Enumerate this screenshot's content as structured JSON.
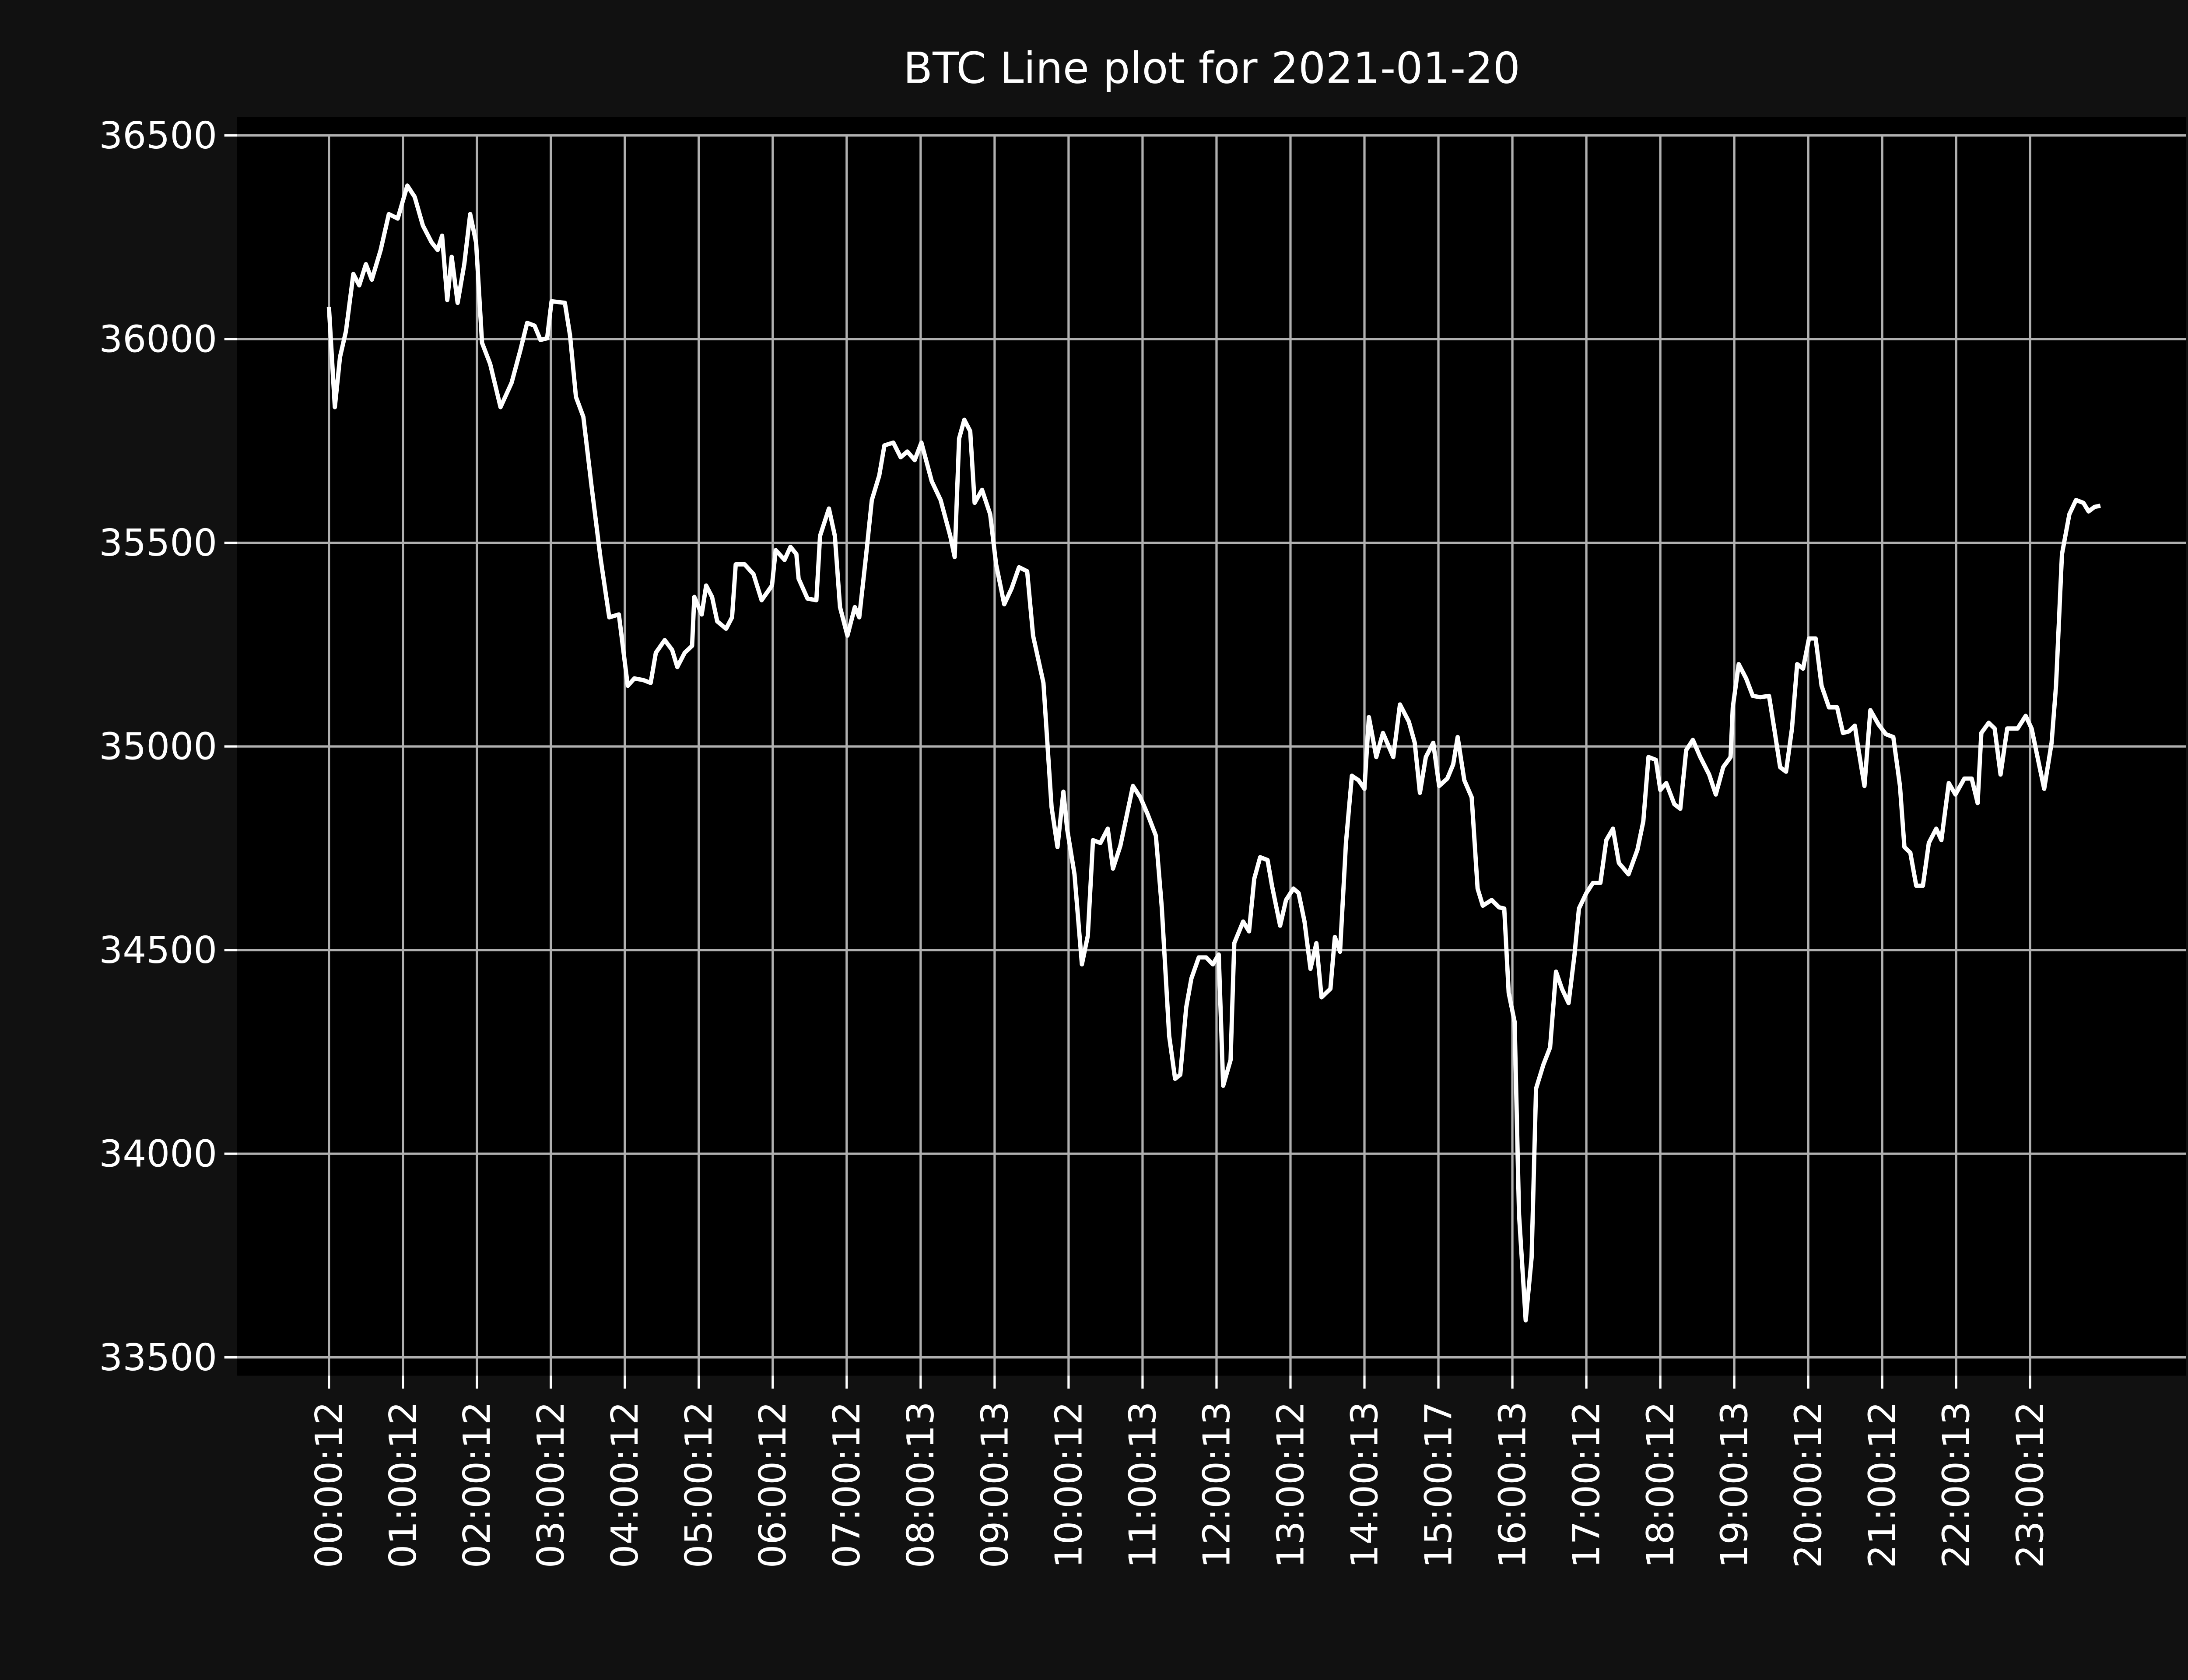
{
  "chart_data": {
    "type": "line",
    "title": "BTC Line plot for 2021-01-20",
    "color": "#ffffff",
    "grid": true,
    "x": [
      0.0,
      0.08,
      0.15,
      0.23,
      0.33,
      0.41,
      0.5,
      0.58,
      0.7,
      0.81,
      0.93,
      1.06,
      1.16,
      1.27,
      1.39,
      1.47,
      1.53,
      1.6,
      1.66,
      1.74,
      1.83,
      1.91,
      1.99,
      2.07,
      2.18,
      2.32,
      2.47,
      2.59,
      2.68,
      2.78,
      2.86,
      2.95,
      3.01,
      3.19,
      3.26,
      3.34,
      3.44,
      3.55,
      3.67,
      3.79,
      3.92,
      4.04,
      4.13,
      4.25,
      4.35,
      4.42,
      4.54,
      4.64,
      4.71,
      4.81,
      4.91,
      4.94,
      5.04,
      5.1,
      5.18,
      5.25,
      5.37,
      5.45,
      5.5,
      5.62,
      5.74,
      5.85,
      5.99,
      6.04,
      6.16,
      6.24,
      6.32,
      6.35,
      6.47,
      6.59,
      6.64,
      6.76,
      6.84,
      6.91,
      7.01,
      7.11,
      7.17,
      7.26,
      7.34,
      7.44,
      7.51,
      7.63,
      7.73,
      7.82,
      7.92,
      8.01,
      8.15,
      8.27,
      8.4,
      8.46,
      8.52,
      8.59,
      8.67,
      8.73,
      8.83,
      8.94,
      9.02,
      9.13,
      9.23,
      9.33,
      9.44,
      9.52,
      9.66,
      9.77,
      9.85,
      9.93,
      9.98,
      10.08,
      10.18,
      10.26,
      10.33,
      10.43,
      10.53,
      10.6,
      10.7,
      10.81,
      10.87,
      10.97,
      11.07,
      11.18,
      11.26,
      11.36,
      11.44,
      11.51,
      11.59,
      11.66,
      11.76,
      11.86,
      11.95,
      12.03,
      12.09,
      12.19,
      12.24,
      12.36,
      12.44,
      12.51,
      12.59,
      12.69,
      12.75,
      12.86,
      12.94,
      13.04,
      13.11,
      13.19,
      13.27,
      13.35,
      13.42,
      13.54,
      13.6,
      13.67,
      13.75,
      13.83,
      13.92,
      14.0,
      14.06,
      14.16,
      14.25,
      14.39,
      14.48,
      14.6,
      14.68,
      14.75,
      14.83,
      14.93,
      15.01,
      15.12,
      15.2,
      15.26,
      15.35,
      15.45,
      15.53,
      15.6,
      15.72,
      15.82,
      15.89,
      15.95,
      16.03,
      16.09,
      16.18,
      16.26,
      16.32,
      16.42,
      16.51,
      16.59,
      16.67,
      16.76,
      16.84,
      16.9,
      17.0,
      17.09,
      17.19,
      17.27,
      17.36,
      17.44,
      17.57,
      17.69,
      17.77,
      17.84,
      17.94,
      18.0,
      18.08,
      18.19,
      18.27,
      18.35,
      18.44,
      18.54,
      18.66,
      18.75,
      18.85,
      18.95,
      18.98,
      19.06,
      19.16,
      19.25,
      19.35,
      19.47,
      19.54,
      19.62,
      19.7,
      19.78,
      19.85,
      19.93,
      20.01,
      20.1,
      20.18,
      20.28,
      20.39,
      20.47,
      20.55,
      20.63,
      20.68,
      20.76,
      20.84,
      20.95,
      21.05,
      21.15,
      21.24,
      21.3,
      21.38,
      21.46,
      21.55,
      21.63,
      21.73,
      21.8,
      21.9,
      21.99,
      22.11,
      22.21,
      22.29,
      22.34,
      22.44,
      22.52,
      22.6,
      22.69,
      22.83,
      22.94,
      23.02,
      23.12,
      23.19,
      23.29,
      23.35,
      23.43,
      23.53,
      23.62,
      23.72,
      23.79,
      23.87,
      23.95
    ],
    "values": [
      36079,
      35833,
      35956,
      36019,
      36160,
      36132,
      36184,
      36146,
      36219,
      36307,
      36296,
      36377,
      36349,
      36279,
      36237,
      36219,
      36254,
      36096,
      36202,
      36089,
      36184,
      36307,
      36237,
      35991,
      35939,
      35833,
      35893,
      35974,
      36040,
      36033,
      35998,
      36002,
      36093,
      36089,
      36009,
      35858,
      35809,
      35640,
      35465,
      35317,
      35324,
      35149,
      35167,
      35163,
      35156,
      35230,
      35261,
      35237,
      35195,
      35230,
      35247,
      35367,
      35324,
      35395,
      35367,
      35307,
      35289,
      35317,
      35447,
      35447,
      35423,
      35359,
      35395,
      35482,
      35458,
      35490,
      35472,
      35412,
      35363,
      35359,
      35517,
      35584,
      35517,
      35342,
      35272,
      35342,
      35317,
      35465,
      35605,
      35665,
      35739,
      35746,
      35710,
      35724,
      35703,
      35746,
      35651,
      35605,
      35517,
      35465,
      35756,
      35802,
      35774,
      35598,
      35630,
      35570,
      35447,
      35349,
      35388,
      35440,
      35430,
      35272,
      35156,
      34851,
      34753,
      34889,
      34798,
      34686,
      34465,
      34535,
      34770,
      34763,
      34798,
      34700,
      34756,
      34851,
      34903,
      34875,
      34833,
      34781,
      34605,
      34289,
      34184,
      34194,
      34359,
      34430,
      34482,
      34482,
      34465,
      34489,
      34167,
      34230,
      34517,
      34570,
      34546,
      34675,
      34728,
      34721,
      34658,
      34560,
      34623,
      34651,
      34640,
      34570,
      34454,
      34517,
      34384,
      34405,
      34532,
      34496,
      34763,
      34928,
      34917,
      34896,
      35072,
      34974,
      35033,
      34974,
      35103,
      35061,
      35009,
      34886,
      34974,
      35009,
      34903,
      34921,
      34956,
      35023,
      34917,
      34875,
      34651,
      34609,
      34623,
      34605,
      34602,
      34395,
      34324,
      33851,
      33591,
      33745,
      34160,
      34219,
      34261,
      34447,
      34405,
      34370,
      34489,
      34602,
      34640,
      34665,
      34665,
      34770,
      34798,
      34714,
      34686,
      34746,
      34816,
      34974,
      34967,
      34893,
      34910,
      34858,
      34847,
      34991,
      35016,
      34974,
      34931,
      34882,
      34949,
      34974,
      35096,
      35202,
      35167,
      35124,
      35121,
      35124,
      35044,
      34949,
      34938,
      35044,
      35202,
      35191,
      35265,
      35265,
      35149,
      35096,
      35096,
      35033,
      35037,
      35051,
      34991,
      34903,
      35089,
      35054,
      35030,
      35023,
      34903,
      34753,
      34739,
      34658,
      34658,
      34763,
      34798,
      34770,
      34910,
      34882,
      34921,
      34921,
      34861,
      35033,
      35058,
      35044,
      34931,
      35044,
      35044,
      35075,
      35044,
      34956,
      34896,
      35009,
      35149,
      35472,
      35570,
      35605,
      35598,
      35577,
      35588,
      35591
    ],
    "xlim": [
      -1.24,
      25.11
    ],
    "ylim": [
      33455,
      36545
    ],
    "xticks": [
      {
        "value": 0,
        "label": "00:00:12"
      },
      {
        "value": 1,
        "label": "01:00:12"
      },
      {
        "value": 2,
        "label": "02:00:12"
      },
      {
        "value": 3,
        "label": "03:00:12"
      },
      {
        "value": 4,
        "label": "04:00:12"
      },
      {
        "value": 5,
        "label": "05:00:12"
      },
      {
        "value": 6,
        "label": "06:00:12"
      },
      {
        "value": 7,
        "label": "07:00:12"
      },
      {
        "value": 8,
        "label": "08:00:13"
      },
      {
        "value": 9,
        "label": "09:00:13"
      },
      {
        "value": 10,
        "label": "10:00:12"
      },
      {
        "value": 11,
        "label": "11:00:13"
      },
      {
        "value": 12,
        "label": "12:00:13"
      },
      {
        "value": 13,
        "label": "13:00:12"
      },
      {
        "value": 14,
        "label": "14:00:13"
      },
      {
        "value": 15,
        "label": "15:00:17"
      },
      {
        "value": 16,
        "label": "16:00:13"
      },
      {
        "value": 17,
        "label": "17:00:12"
      },
      {
        "value": 18,
        "label": "18:00:12"
      },
      {
        "value": 19,
        "label": "19:00:13"
      },
      {
        "value": 20,
        "label": "20:00:12"
      },
      {
        "value": 21,
        "label": "21:00:12"
      },
      {
        "value": 22,
        "label": "22:00:13"
      },
      {
        "value": 23,
        "label": "23:00:12"
      }
    ],
    "yticks": [
      33500,
      34000,
      34500,
      35000,
      35500,
      36000,
      36500
    ]
  }
}
